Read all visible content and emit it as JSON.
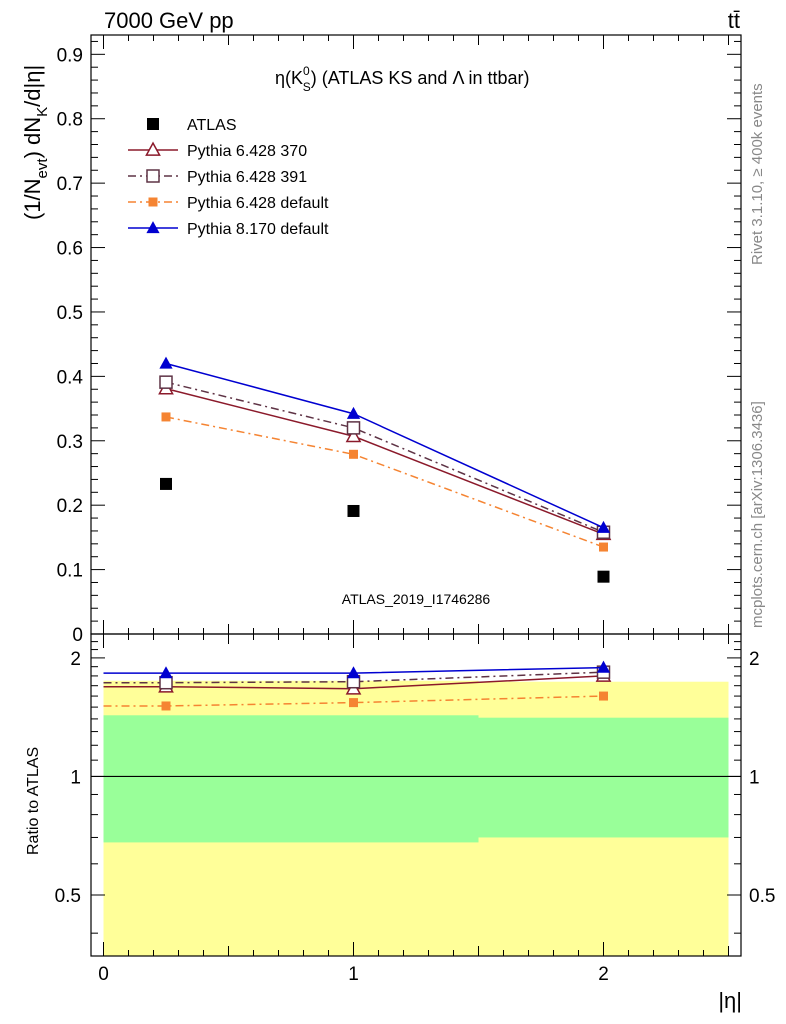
{
  "header": {
    "left": "7000 GeV pp",
    "right": "tt̄"
  },
  "side_labels": {
    "rivet": "Rivet 3.1.10, ≥ 400k events",
    "mcplots": "mcplots.cern.ch [arXiv:1306.3436]"
  },
  "watermark": "ATLAS_2019_I1746286",
  "chart_data": [
    {
      "type": "scatter",
      "panel": "main",
      "title": "η(K⁰S) (ATLAS KS and Λ in ttbar)",
      "title_parts": {
        "pre": "η(K",
        "sup": "0",
        "sub": "S",
        "post": ") (ATLAS KS and Λ in ttbar)"
      },
      "ylabel": "(1/Nevt) dNK/d|η|",
      "ylabel_parts": {
        "a": "(1/N",
        "sub1": "evt",
        "b": ") dN",
        "sub2": "K",
        "c": "/d|η|"
      },
      "xlabel": "|η|",
      "xlim": [
        -0.05,
        2.55
      ],
      "ylim": [
        0,
        0.93
      ],
      "yticks": [
        0,
        0.1,
        0.2,
        0.3,
        0.4,
        0.5,
        0.6,
        0.7,
        0.8,
        0.9
      ],
      "ytick_labels": [
        "0",
        "0.1",
        "0.2",
        "0.3",
        "0.4",
        "0.5",
        "0.6",
        "0.7",
        "0.8",
        "0.9"
      ],
      "x": [
        0.25,
        1.0,
        2.0
      ],
      "legend_position": "top-left",
      "series": [
        {
          "name": "ATLAS",
          "values": [
            0.233,
            0.191,
            0.089
          ],
          "color": "#000000",
          "marker": "square-filled",
          "line": "none"
        },
        {
          "name": "Pythia 6.428 370",
          "values": [
            0.381,
            0.307,
            0.155
          ],
          "color": "#8b1a2b",
          "marker": "triangle-open",
          "line": "solid"
        },
        {
          "name": "Pythia 6.428 391",
          "values": [
            0.391,
            0.32,
            0.158
          ],
          "color": "#5e3345",
          "marker": "square-open",
          "line": "dashdot"
        },
        {
          "name": "Pythia 6.428 default",
          "values": [
            0.337,
            0.279,
            0.135
          ],
          "color": "#f58432",
          "marker": "square-filled",
          "line": "dashdot"
        },
        {
          "name": "Pythia 8.170 default",
          "values": [
            0.42,
            0.342,
            0.165
          ],
          "color": "#0000d0",
          "marker": "triangle-filled",
          "line": "solid"
        }
      ]
    },
    {
      "type": "scatter",
      "panel": "ratio",
      "ylabel": "Ratio to ATLAS",
      "xlabel": "|η|",
      "xlim": [
        -0.05,
        2.55
      ],
      "ylim": [
        0.35,
        2.3
      ],
      "log_y": true,
      "yticks": [
        0.5,
        1,
        2
      ],
      "ytick_labels": [
        "0.5",
        "1",
        "2"
      ],
      "xticks": [
        0,
        1,
        2
      ],
      "xtick_labels": [
        "0",
        "1",
        "2"
      ],
      "x": [
        0.25,
        1.0,
        2.0
      ],
      "bands": [
        {
          "name": "yellow",
          "color": "#ffff99",
          "segments": [
            {
              "x0": 0.0,
              "x1": 0.5,
              "lo": 0.35,
              "hi": 1.75
            },
            {
              "x0": 0.5,
              "x1": 1.5,
              "lo": 0.35,
              "hi": 1.75
            },
            {
              "x0": 1.5,
              "x1": 2.5,
              "lo": 0.35,
              "hi": 1.74
            }
          ]
        },
        {
          "name": "green",
          "color": "#99ff99",
          "segments": [
            {
              "x0": 0.0,
              "x1": 0.5,
              "lo": 0.68,
              "hi": 1.43
            },
            {
              "x0": 0.5,
              "x1": 1.5,
              "lo": 0.68,
              "hi": 1.43
            },
            {
              "x0": 1.5,
              "x1": 2.5,
              "lo": 0.7,
              "hi": 1.41
            }
          ]
        }
      ],
      "series": [
        {
          "name": "Pythia 6.428 370",
          "values": [
            1.69,
            1.67,
            1.8
          ],
          "color": "#8b1a2b",
          "marker": "triangle-open",
          "line": "solid"
        },
        {
          "name": "Pythia 6.428 391",
          "values": [
            1.73,
            1.74,
            1.84
          ],
          "color": "#5e3345",
          "marker": "square-open",
          "line": "dashdot"
        },
        {
          "name": "Pythia 6.428 default",
          "values": [
            1.51,
            1.54,
            1.6
          ],
          "color": "#f58432",
          "marker": "square-filled",
          "line": "dashdot"
        },
        {
          "name": "Pythia 8.170 default",
          "values": [
            1.83,
            1.83,
            1.89
          ],
          "color": "#0000d0",
          "marker": "triangle-filled",
          "line": "solid"
        }
      ]
    }
  ]
}
